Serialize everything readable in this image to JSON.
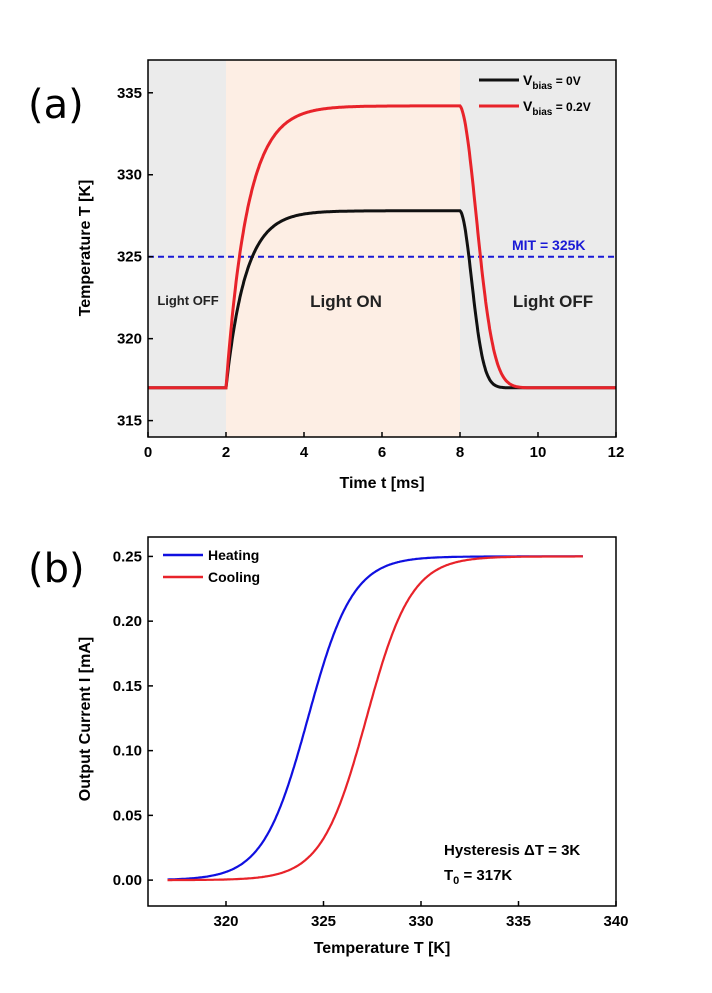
{
  "chart_data": [
    {
      "panel": "(a)",
      "type": "line",
      "xlabel": "Time t [ms]",
      "ylabel": "Temperature T [K]",
      "xlim": [
        0,
        12
      ],
      "ylim": [
        314,
        337
      ],
      "xticks": [
        0,
        2,
        4,
        6,
        8,
        10,
        12
      ],
      "yticks": [
        315,
        320,
        325,
        330,
        335
      ],
      "regions": [
        {
          "label": "Light OFF",
          "x": [
            0,
            2
          ],
          "color": "#ebebeb"
        },
        {
          "label": "Light ON",
          "x": [
            2,
            8
          ],
          "color": "#fdeee4"
        },
        {
          "label": "Light OFF",
          "x": [
            8,
            12
          ],
          "color": "#ebebeb"
        }
      ],
      "reference_line": {
        "label": "MIT = 325K",
        "y": 325,
        "color": "#1a1ad6"
      },
      "series": [
        {
          "legend_main": "V",
          "legend_sub": "bias",
          "legend_tail": " = 0V",
          "color": "#111111",
          "base": 317,
          "peak": 327.8,
          "rise_tau": 0.5,
          "fall_tau": 0.42
        },
        {
          "legend_main": "V",
          "legend_sub": "bias",
          "legend_tail": " = 0.2V",
          "color": "#e8232a",
          "base": 317,
          "peak": 334.2,
          "rise_tau": 0.55,
          "fall_tau": 0.6
        }
      ],
      "on_time": 2,
      "off_time": 8
    },
    {
      "panel": "(b)",
      "type": "line",
      "xlabel": "Temperature T [K]",
      "ylabel": "Output Current I [mA]",
      "xlim": [
        316,
        340
      ],
      "ylim": [
        -0.02,
        0.265
      ],
      "xticks": [
        320,
        325,
        330,
        335,
        340
      ],
      "yticks": [
        0.0,
        0.05,
        0.1,
        0.15,
        0.2,
        0.25
      ],
      "ytick_labels": [
        "0.00",
        "0.05",
        "0.10",
        "0.15",
        "0.20",
        "0.25"
      ],
      "x_range": [
        317,
        338.3
      ],
      "series": [
        {
          "name": "Heating",
          "color": "#1010e0",
          "center": 324.2,
          "width": 1.15,
          "max": 0.25
        },
        {
          "name": "Cooling",
          "color": "#e8232a",
          "center": 327.2,
          "width": 1.15,
          "max": 0.25
        }
      ],
      "annotations": {
        "hysteresis": "Hysteresis ΔT = 3K",
        "t0_main": "T",
        "t0_sub": "0",
        "t0_tail": " = 317K"
      }
    }
  ]
}
